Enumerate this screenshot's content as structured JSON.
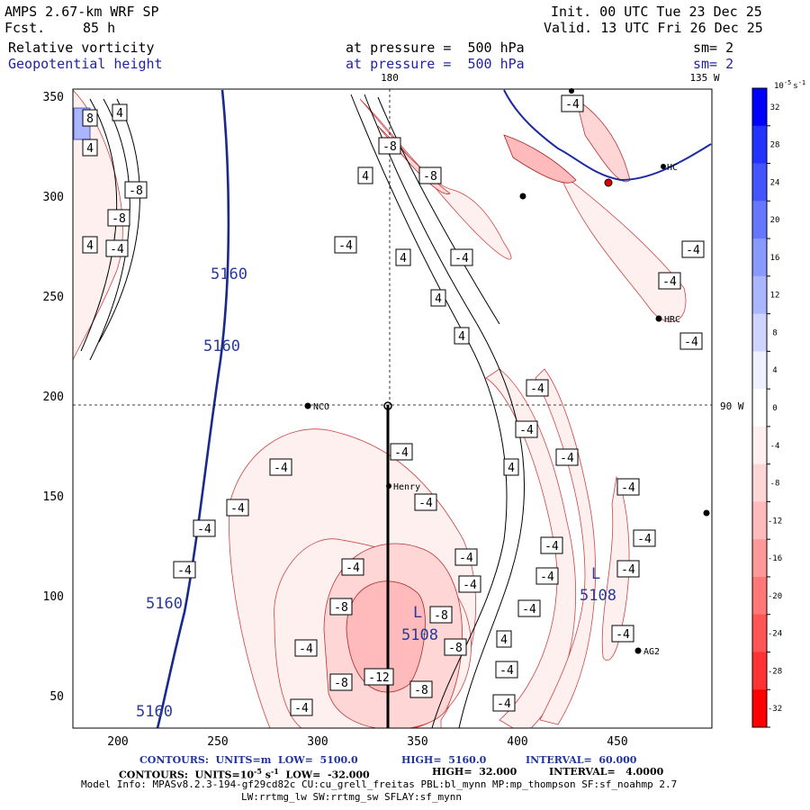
{
  "header": {
    "title": "AMPS 2.67-km WRF SP",
    "forecast_label": "Fcst.",
    "forecast_value": "85 h",
    "init": "Init. 00 UTC Tue 23 Dec 25",
    "valid": "Valid. 13 UTC Fri 26 Dec 25",
    "field1": "Relative vorticity",
    "field1_level": "at pressure =  500 hPa",
    "field1_sm": "sm= 2",
    "field2": "Geopotential height",
    "field2_level": "at pressure =  500 hPa",
    "field2_sm": "sm= 2"
  },
  "map": {
    "top_label_180": "180",
    "top_label_135": "135 W",
    "right_label_90": "90 W",
    "x_ticks": [
      "200",
      "250",
      "300",
      "350",
      "400",
      "450"
    ],
    "y_ticks": [
      "350",
      "300",
      "250",
      "200",
      "150",
      "100",
      "50"
    ],
    "stations": [
      "NCO",
      "Henry",
      "HRC",
      "AG2",
      "HC"
    ],
    "height_labels": [
      "5160",
      "5160",
      "5160",
      "5160"
    ],
    "low_labels": [
      "L",
      "L"
    ],
    "low_values": [
      "5108",
      "5108"
    ],
    "vort_labels": [
      "-4",
      "-8",
      "4",
      "8",
      "-12"
    ]
  },
  "colorbar": {
    "unit": "10",
    "unit_exp": "-5",
    "unit_suffix": "s",
    "unit_suffix_exp": "-1",
    "labels": [
      "32",
      "28",
      "24",
      "20",
      "16",
      "12",
      "8",
      "4",
      "0",
      "-4",
      "-8",
      "-12",
      "-16",
      "-20",
      "-24",
      "-28",
      "-32"
    ],
    "colors": [
      "#0000ff",
      "#2233ff",
      "#4455ff",
      "#6677ff",
      "#8899ff",
      "#aab6ff",
      "#cdd5ff",
      "#eef1ff",
      "#ffffff",
      "#fff0f0",
      "#ffd6d6",
      "#ffbbbb",
      "#ff9999",
      "#ff7777",
      "#ff5555",
      "#ff3333",
      "#ff0000"
    ]
  },
  "footer": {
    "line1_a": "CONTOURS:  UNITS=m  LOW=  5100.0",
    "line1_b": "HIGH=  5160.0",
    "line1_c": "INTERVAL=  60.000",
    "line2_a": "CONTOURS:  UNITS=10",
    "line2_exp": "-5",
    "line2_b": " s",
    "line2_exp2": "-1",
    "line2_c": "  LOW=  -32.000",
    "line2_d": "HIGH=  32.000",
    "line2_e": "INTERVAL=   4.0000",
    "model_info": "Model Info: MPASv8.2.3-194-gf29cd82c CU:cu_grell_freitas PBL:bl_mynn MP:mp_thompson SF:sf_noahmp 2.7",
    "model_info2": "LW:rrtmg_lw SW:rrtmg_sw SFLAY:sf_mynn"
  }
}
